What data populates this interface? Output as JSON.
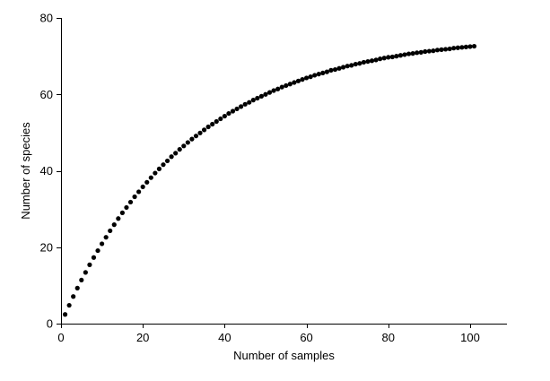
{
  "chart_data": {
    "type": "scatter",
    "title": "",
    "xlabel": "Number of samples",
    "ylabel": "Number of species",
    "xlim": [
      0,
      109
    ],
    "ylim": [
      0,
      80
    ],
    "xticks": [
      0,
      20,
      40,
      60,
      80,
      100
    ],
    "yticks": [
      0,
      20,
      40,
      60,
      80
    ],
    "xtick_labels": [
      "0",
      "20",
      "40",
      "60",
      "80",
      "100"
    ],
    "ytick_labels": [
      "0",
      "20",
      "40",
      "60",
      "80"
    ],
    "grid": false,
    "legend": "none",
    "marker_color": "#000000",
    "series": [
      {
        "x": [
          1,
          2,
          3,
          4,
          5,
          6,
          7,
          8,
          9,
          10,
          11,
          12,
          13,
          14,
          15,
          16,
          17,
          18,
          19,
          20,
          21,
          22,
          23,
          24,
          25,
          26,
          27,
          28,
          29,
          30,
          31,
          32,
          33,
          34,
          35,
          36,
          37,
          38,
          39,
          40,
          41,
          42,
          43,
          44,
          45,
          46,
          47,
          48,
          49,
          50,
          51,
          52,
          53,
          54,
          55,
          56,
          57,
          58,
          59,
          60,
          61,
          62,
          63,
          64,
          65,
          66,
          67,
          68,
          69,
          70,
          71,
          72,
          73,
          74,
          75,
          76,
          77,
          78,
          79,
          80,
          81,
          82,
          83,
          84,
          85,
          86,
          87,
          88,
          89,
          90,
          91,
          92,
          93,
          94,
          95,
          96,
          97,
          98,
          99,
          100,
          101
        ],
        "y": [
          2.4,
          4.8,
          7.1,
          9.3,
          11.4,
          13.4,
          15.4,
          17.3,
          19.1,
          20.9,
          22.6,
          24.3,
          25.9,
          27.5,
          29.0,
          30.4,
          31.8,
          33.2,
          34.5,
          35.8,
          37.0,
          38.2,
          39.4,
          40.5,
          41.6,
          42.6,
          43.7,
          44.6,
          45.6,
          46.5,
          47.4,
          48.3,
          49.1,
          49.9,
          50.7,
          51.5,
          52.2,
          52.9,
          53.6,
          54.3,
          55.0,
          55.6,
          56.2,
          56.8,
          57.4,
          57.9,
          58.5,
          59.0,
          59.5,
          60.0,
          60.5,
          61.0,
          61.4,
          61.9,
          62.3,
          62.7,
          63.1,
          63.5,
          63.9,
          64.3,
          64.6,
          65.0,
          65.3,
          65.6,
          65.9,
          66.3,
          66.5,
          66.8,
          67.1,
          67.4,
          67.6,
          67.9,
          68.1,
          68.4,
          68.6,
          68.8,
          69.0,
          69.3,
          69.5,
          69.7,
          69.8,
          70.0,
          70.2,
          70.4,
          70.6,
          70.7,
          70.9,
          71.0,
          71.2,
          71.3,
          71.4,
          71.6,
          71.7,
          71.8,
          71.9,
          72.1,
          72.2,
          72.3,
          72.4,
          72.5,
          72.6
        ]
      }
    ]
  }
}
